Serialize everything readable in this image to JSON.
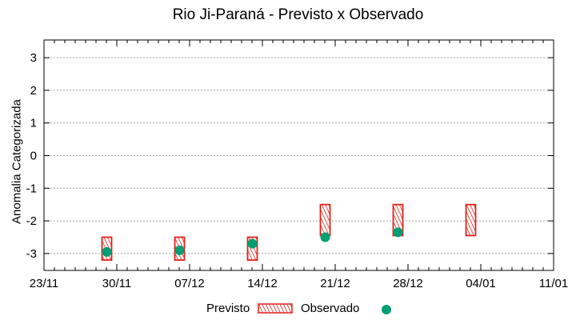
{
  "chart_data": {
    "type": "bar",
    "title": "Rio Ji-Paraná - Previsto x Observado",
    "xlabel": "",
    "ylabel": "Anomalia Categorizada",
    "ylim": [
      -3.5,
      3.5
    ],
    "yticks": [
      "3",
      "2",
      "1",
      "0",
      "-1",
      "-2",
      "-3"
    ],
    "xticks": [
      "23/11",
      "30/11",
      "07/12",
      "14/12",
      "21/12",
      "28/12",
      "04/01",
      "11/01"
    ],
    "grid": "horizontal dotted",
    "legend_position": "bottom",
    "series": [
      {
        "name": "Previsto",
        "kind": "range-box",
        "color": "#e0231b",
        "points": [
          {
            "date": "29/11",
            "low": -3.2,
            "high": -2.5
          },
          {
            "date": "06/12",
            "low": -3.2,
            "high": -2.5
          },
          {
            "date": "13/12",
            "low": -3.2,
            "high": -2.5
          },
          {
            "date": "20/12",
            "low": -2.45,
            "high": -1.5
          },
          {
            "date": "27/12",
            "low": -2.45,
            "high": -1.5
          },
          {
            "date": "03/01",
            "low": -2.45,
            "high": -1.5
          }
        ]
      },
      {
        "name": "Observado",
        "kind": "point",
        "color": "#009e73",
        "points": [
          {
            "date": "29/11",
            "value": -2.95
          },
          {
            "date": "06/12",
            "value": -2.9
          },
          {
            "date": "13/12",
            "value": -2.7
          },
          {
            "date": "20/12",
            "value": -2.5
          },
          {
            "date": "27/12",
            "value": -2.35
          }
        ]
      }
    ]
  },
  "legend": {
    "previsto": "Previsto",
    "observado": "Observado"
  }
}
